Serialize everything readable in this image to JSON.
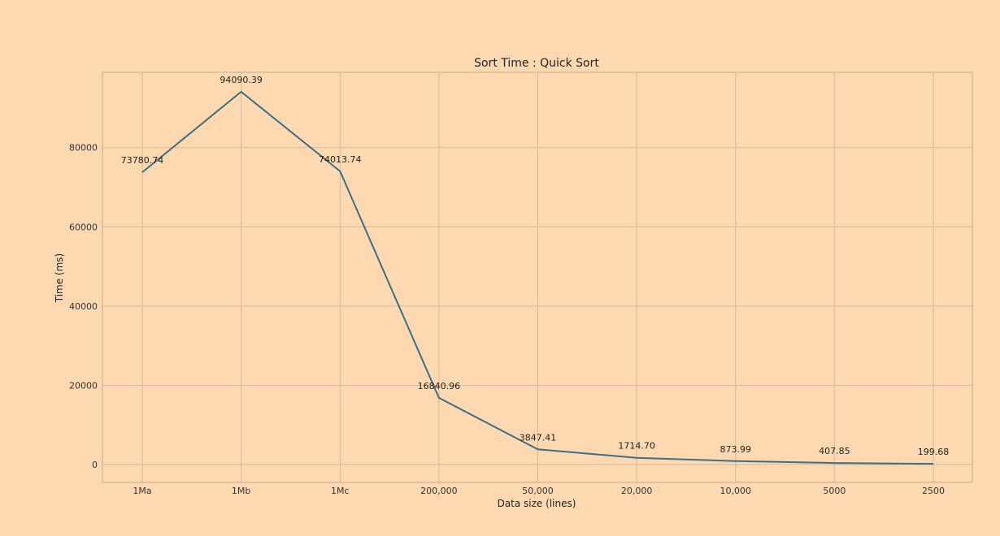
{
  "chart_data": {
    "type": "line",
    "title": "Sort Time : Quick Sort",
    "xlabel": "Data size (lines)",
    "ylabel": "Time (ms)",
    "categories": [
      "1Ma",
      "1Mb",
      "1Mc",
      "200,000",
      "50,000",
      "20,000",
      "10,000",
      "5000",
      "2500"
    ],
    "series": [
      {
        "values": [
          73780.74,
          94090.39,
          74013.74,
          16840.96,
          3847.41,
          1714.7,
          873.99,
          407.85,
          199.68
        ],
        "value_labels": [
          "73780.74",
          "94090.39",
          "74013.74",
          "16840.96",
          "3847.41",
          "1714.70",
          "873.99",
          "407.85",
          "199.68"
        ],
        "color": "#3c6e84"
      }
    ],
    "yticks": [
      0,
      20000,
      40000,
      60000,
      80000
    ],
    "ylim": [
      -4500,
      99000
    ],
    "grid": true,
    "colors": {
      "background": "#fed8b1",
      "grid": "#d4b89c",
      "frame": "#c8aa8c",
      "line": "#3c6e84"
    }
  }
}
